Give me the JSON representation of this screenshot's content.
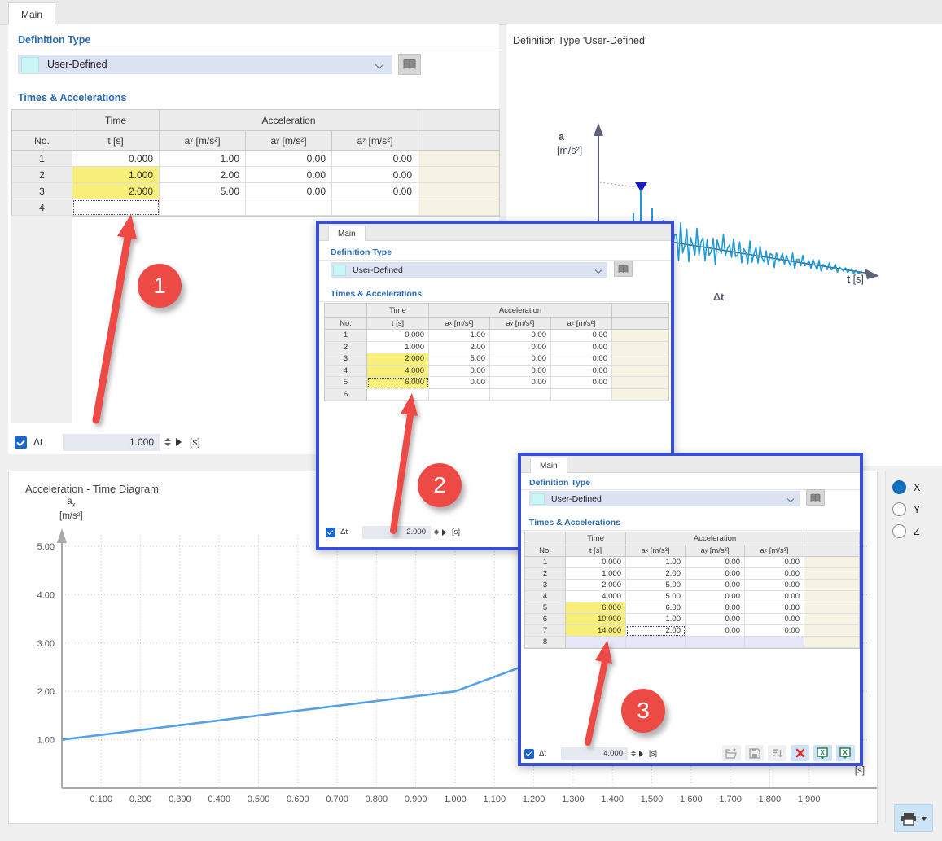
{
  "tabs": {
    "main": "Main"
  },
  "sections": {
    "definition_type": "Definition Type",
    "times_accelerations": "Times & Accelerations"
  },
  "combo": {
    "value": "User-Defined"
  },
  "table_headers": {
    "no": "No.",
    "time": "Time",
    "t_s": "t [s]",
    "acceleration": "Acceleration",
    "ax": {
      "base": "a",
      "sub": "x",
      "unit": "[m/s²]"
    },
    "ay": {
      "base": "a",
      "sub": "y",
      "unit": "[m/s²]"
    },
    "az": {
      "base": "a",
      "sub": "z",
      "unit": "[m/s²]"
    }
  },
  "main_window": {
    "rows": [
      {
        "no": "1",
        "t": "0.000",
        "ax": "1.00",
        "ay": "0.00",
        "az": "0.00"
      },
      {
        "no": "2",
        "t": "1.000",
        "ax": "2.00",
        "ay": "0.00",
        "az": "0.00",
        "t_hl": true
      },
      {
        "no": "3",
        "t": "2.000",
        "ax": "5.00",
        "ay": "0.00",
        "az": "0.00",
        "t_hl": true
      },
      {
        "no": "4",
        "t": "",
        "ax": "",
        "ay": "",
        "az": "",
        "t_sel": true
      }
    ],
    "dt": {
      "label": "Δt",
      "value": "1.000",
      "unit": "[s]"
    }
  },
  "overlay2": {
    "tab": "Main",
    "rows": [
      {
        "no": "1",
        "t": "0.000",
        "ax": "1.00",
        "ay": "0.00",
        "az": "0.00"
      },
      {
        "no": "2",
        "t": "1.000",
        "ax": "2.00",
        "ay": "0.00",
        "az": "0.00"
      },
      {
        "no": "3",
        "t": "2.000",
        "ax": "5.00",
        "ay": "0.00",
        "az": "0.00",
        "t_hl": true
      },
      {
        "no": "4",
        "t": "4.000",
        "ax": "0.00",
        "ay": "0.00",
        "az": "0.00",
        "t_hl": true
      },
      {
        "no": "5",
        "t": "6.000",
        "ax": "0.00",
        "ay": "0.00",
        "az": "0.00",
        "t_hl": true,
        "t_sel": true
      },
      {
        "no": "6",
        "t": "",
        "ax": "",
        "ay": "",
        "az": ""
      }
    ],
    "dt": {
      "label": "Δt",
      "value": "2.000",
      "unit": "[s]"
    }
  },
  "overlay3": {
    "tab": "Main",
    "rows": [
      {
        "no": "1",
        "t": "0.000",
        "ax": "1.00",
        "ay": "0.00",
        "az": "0.00"
      },
      {
        "no": "2",
        "t": "1.000",
        "ax": "2.00",
        "ay": "0.00",
        "az": "0.00"
      },
      {
        "no": "3",
        "t": "2.000",
        "ax": "5.00",
        "ay": "0.00",
        "az": "0.00"
      },
      {
        "no": "4",
        "t": "4.000",
        "ax": "5.00",
        "ay": "0.00",
        "az": "0.00"
      },
      {
        "no": "5",
        "t": "6.000",
        "ax": "6.00",
        "ay": "0.00",
        "az": "0.00",
        "t_hl": true
      },
      {
        "no": "6",
        "t": "10.000",
        "ax": "1.00",
        "ay": "0.00",
        "az": "0.00",
        "t_hl": true
      },
      {
        "no": "7",
        "t": "14.000",
        "ax": "2.00",
        "ay": "0.00",
        "az": "0.00",
        "t_hl": true,
        "ax_sel": true
      },
      {
        "no": "8",
        "t": "",
        "ax": "",
        "ay": "",
        "az": "",
        "row_new": true
      }
    ],
    "dt": {
      "label": "Δt",
      "value": "4.000",
      "unit": "[s]"
    },
    "toolbar_icons": [
      "open-file",
      "save-file",
      "sort-rows",
      "delete-all",
      "excel-export",
      "excel-import"
    ]
  },
  "preview": {
    "title": "Definition Type 'User-Defined'",
    "y_axis": {
      "base": "a",
      "unit": "[m/s²]"
    },
    "x_axis": {
      "sym": "t",
      "unit": "[s]"
    },
    "dt_label": "Δt"
  },
  "axis_selector": {
    "options": [
      {
        "label": "X",
        "selected": true
      },
      {
        "label": "Y",
        "selected": false
      },
      {
        "label": "Z",
        "selected": false
      }
    ]
  },
  "annotations": {
    "step1": "1",
    "step2": "2",
    "step3": "3"
  },
  "chart_data": {
    "type": "line",
    "title": "Acceleration - Time Diagram",
    "xlabel_parts": {
      "sym": "t",
      "unit": "[s]"
    },
    "ylabel_parts": {
      "base": "a",
      "sub": "x",
      "unit": "[m/s²]"
    },
    "x": [
      0.0,
      1.0,
      2.0
    ],
    "y": [
      1.0,
      2.0,
      5.0
    ],
    "xlim": [
      0,
      2.12
    ],
    "ylim": [
      0,
      5.5
    ],
    "x_tick_labels": [
      "0.100",
      "0.200",
      "0.300",
      "0.400",
      "0.500",
      "0.600",
      "0.700",
      "0.800",
      "0.900",
      "1.000",
      "1.100",
      "1.200",
      "1.300",
      "1.400",
      "1.500",
      "1.600",
      "1.700",
      "1.800",
      "1.900"
    ],
    "y_tick_labels": [
      "1.00",
      "2.00",
      "3.00",
      "4.00",
      "5.00"
    ],
    "grid": true,
    "legend": false,
    "line_color": "#55a1e8"
  }
}
